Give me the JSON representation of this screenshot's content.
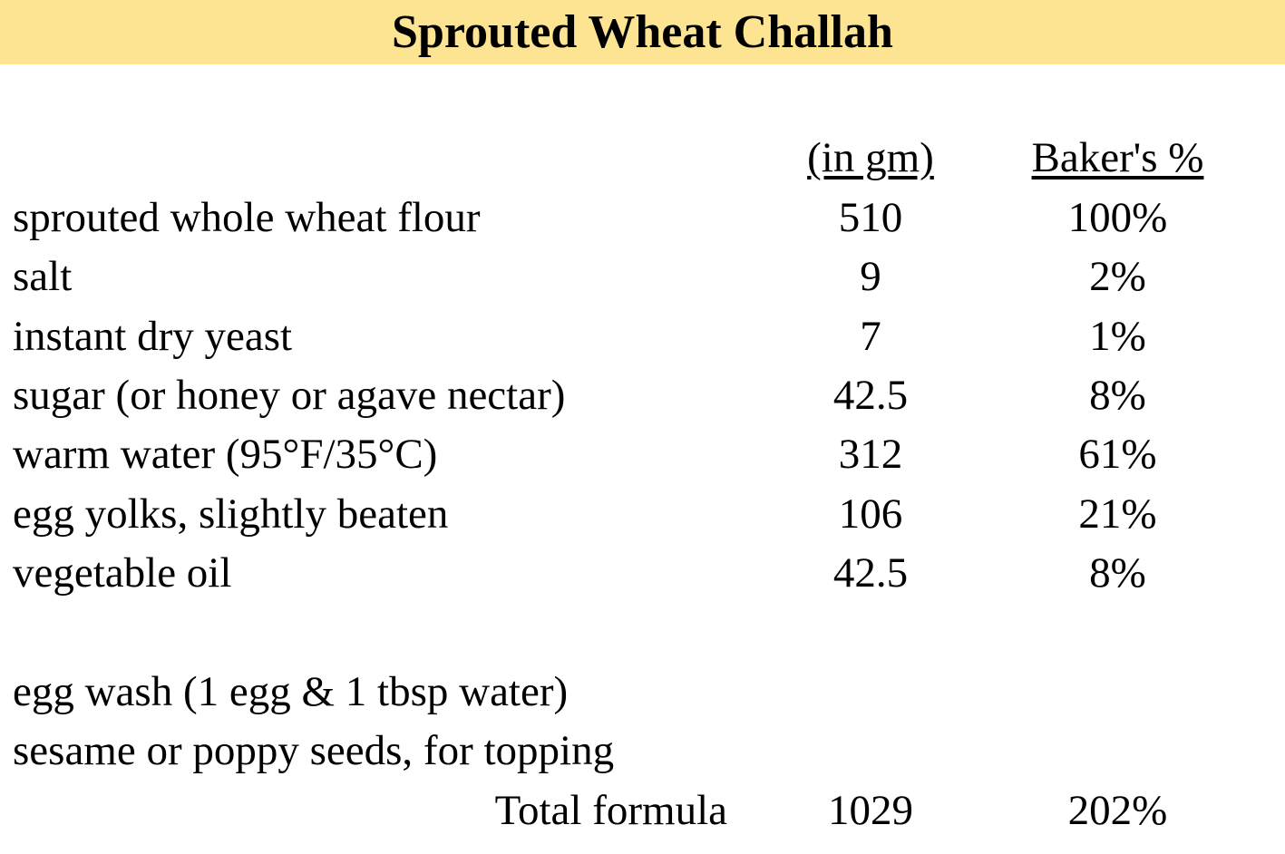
{
  "title": "Sprouted Wheat Challah",
  "columns": {
    "amount": "(in gm)",
    "percent": "Baker's %"
  },
  "ingredients": [
    {
      "name": "sprouted whole wheat flour",
      "grams": "510",
      "percent": "100%"
    },
    {
      "name": "salt",
      "grams": "9",
      "percent": "2%"
    },
    {
      "name": "instant dry yeast",
      "grams": "7",
      "percent": "1%"
    },
    {
      "name": "sugar (or honey or agave nectar)",
      "grams": "42.5",
      "percent": "8%"
    },
    {
      "name": "warm water (95°F/35°C)",
      "grams": "312",
      "percent": "61%"
    },
    {
      "name": "egg yolks, slightly beaten",
      "grams": "106",
      "percent": "21%"
    },
    {
      "name": "vegetable oil",
      "grams": "42.5",
      "percent": "8%"
    }
  ],
  "extras": [
    {
      "name": "egg wash (1 egg & 1 tbsp water)"
    },
    {
      "name": "sesame or poppy seeds, for topping"
    }
  ],
  "total": {
    "label": "Total formula",
    "grams": "1029",
    "percent": "202%"
  },
  "colors": {
    "header_bg": "#FDE493",
    "text": "#000000",
    "page_bg": "#FFFFFF"
  }
}
